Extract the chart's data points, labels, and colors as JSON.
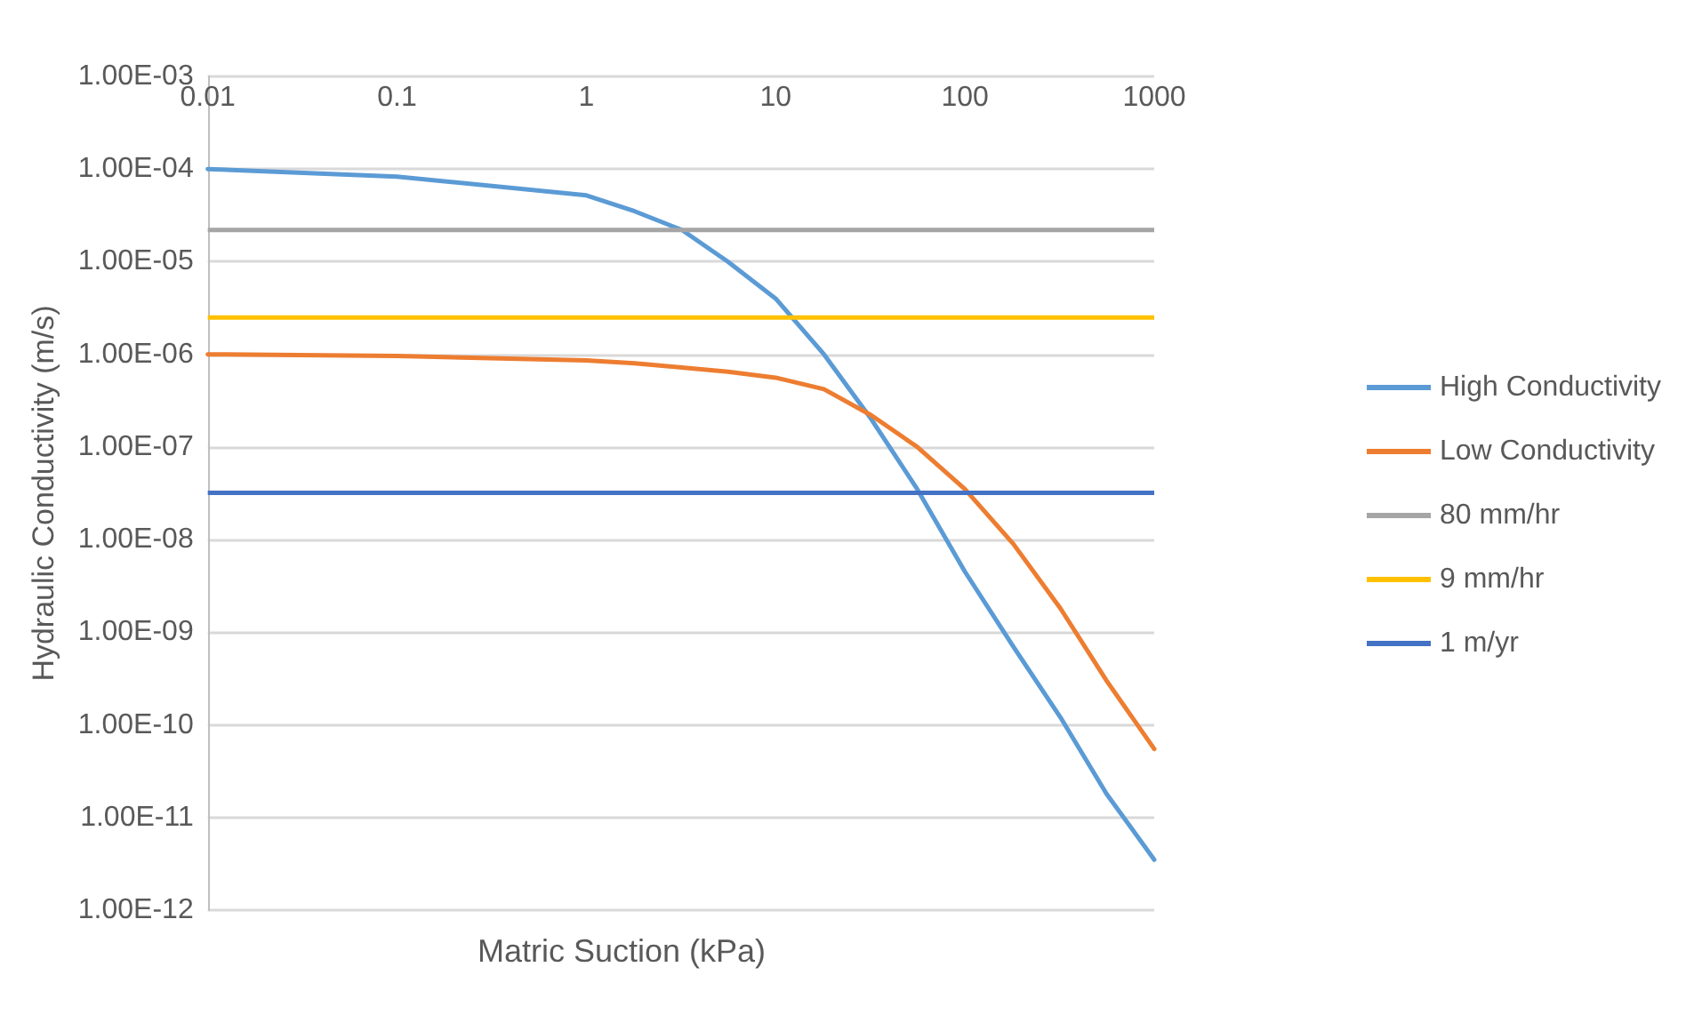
{
  "chart_data": {
    "type": "line",
    "xlabel": "Matric Suction (kPa)",
    "ylabel": "Hydraulic Conductivity (m/s)",
    "log": "xy",
    "grid": "y",
    "legend": "right",
    "marker": "none",
    "line_style": "solid",
    "x": [
      0.01,
      0.1,
      1,
      1.8,
      3.2,
      5.6,
      10,
      18,
      32,
      56,
      100,
      180,
      320,
      560,
      1000
    ],
    "series": [
      {
        "name": "High Conductivity",
        "color": "#5b9bd5",
        "values": [
          0.0001,
          8.3e-05,
          5.2e-05,
          3.5e-05,
          2.2e-05,
          1e-05,
          4e-06,
          1e-06,
          2e-07,
          3.5e-08,
          4.5e-09,
          7e-10,
          1.2e-10,
          1.8e-11,
          3.5e-12
        ]
      },
      {
        "name": "Low Conductivity",
        "color": "#ed7d31",
        "values": [
          1e-06,
          9.6e-07,
          8.6e-07,
          8e-07,
          7.2e-07,
          6.5e-07,
          5.6e-07,
          4.2e-07,
          2.2e-07,
          1e-07,
          3.5e-08,
          9e-09,
          1.8e-09,
          3e-10,
          5.5e-11
        ]
      }
    ],
    "ref_lines": [
      {
        "axis": "y",
        "value": 2.2e-05,
        "label": "80 mm/hr",
        "color": "#a5a5a5"
      },
      {
        "axis": "y",
        "value": 2.5e-06,
        "label": "9 mm/hr",
        "color": "#ffc000"
      },
      {
        "axis": "y",
        "value": 3.2e-08,
        "label": "1 m/yr",
        "color": "#4472c4"
      }
    ],
    "xlim": [
      0.01,
      1000
    ],
    "xticks": [
      0.01,
      0.1,
      1,
      10,
      100,
      1000
    ],
    "ylim": [
      1e-12,
      0.001
    ],
    "yticks": [
      {
        "value": 1e-12,
        "label": "1.00E-12"
      },
      {
        "value": 1e-11,
        "label": "1.00E-11"
      },
      {
        "value": 1e-10,
        "label": "1.00E-10"
      },
      {
        "value": 1e-09,
        "label": "1.00E-09"
      },
      {
        "value": 1e-08,
        "label": "1.00E-08"
      },
      {
        "value": 1e-07,
        "label": "1.00E-07"
      },
      {
        "value": 1e-06,
        "label": "1.00E-06"
      },
      {
        "value": 1e-05,
        "label": "1.00E-05"
      },
      {
        "value": 0.0001,
        "label": "1.00E-04"
      },
      {
        "value": 0.001,
        "label": "1.00E-03"
      }
    ]
  }
}
